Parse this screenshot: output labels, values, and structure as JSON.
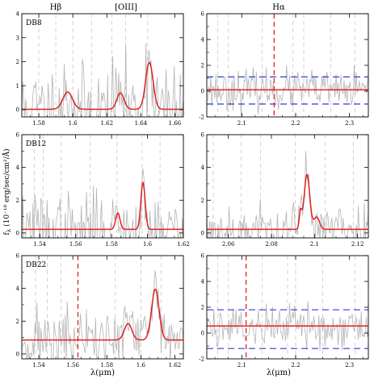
{
  "figure": {
    "header_left_1": "Hβ",
    "header_left_2": "[OIII]",
    "header_right": "Hα",
    "ylabel": "f",
    "ylabel_sub": "λ",
    "ylabel_units": "(10⁻¹⁸ erg/sec/cm²/Å)",
    "xlabel_left": "λ(μm)",
    "xlabel_right": "λ(μm)"
  },
  "colors": {
    "model": "#e02020",
    "spectrum": "#b4b4b4",
    "lines": "#c8c8c8",
    "band": "#2b3bd6",
    "frame": "#000000"
  },
  "chart_data": [
    {
      "type": "line",
      "label": "DB8",
      "panel": "top-left",
      "xlim": [
        1.57,
        1.665
      ],
      "ylim": [
        -0.3,
        4.0
      ],
      "xticks": [
        1.58,
        1.6,
        1.62,
        1.64,
        1.66
      ],
      "xticklabels": [
        "1.58",
        "1.6",
        "1.62",
        "1.64",
        "1.66"
      ],
      "yticks": [
        0,
        1,
        2,
        3,
        4
      ],
      "yticklabels": [
        "0",
        "1",
        "2",
        "3",
        "4"
      ],
      "dashed_lines": [
        1.58,
        1.59,
        1.6,
        1.611,
        1.623,
        1.631,
        1.644
      ],
      "model": {
        "baseline": 0.02,
        "gaussians": [
          {
            "center": 1.597,
            "amp": 0.72,
            "sigma": 0.0028
          },
          {
            "center": 1.628,
            "amp": 0.68,
            "sigma": 0.0021
          },
          {
            "center": 1.645,
            "amp": 1.95,
            "sigma": 0.0022
          }
        ]
      },
      "noise": {
        "sigma": 0.9,
        "seed": 11
      }
    },
    {
      "type": "line",
      "label": "",
      "panel": "top-right",
      "xlim": [
        2.035,
        2.335
      ],
      "ylim": [
        -2.0,
        6.0
      ],
      "xticks": [
        2.1,
        2.2,
        2.3
      ],
      "xticklabels": [
        "2.1",
        "2.2",
        "2.3"
      ],
      "yticks": [
        -2,
        0,
        2,
        4,
        6
      ],
      "yticklabels": [
        "-2",
        "0",
        "2",
        "4",
        "6"
      ],
      "minor_yticks": [
        -1,
        1,
        3,
        5
      ],
      "dashed_lines": [
        2.055,
        2.075,
        2.138,
        2.195,
        2.215,
        2.265,
        2.31
      ],
      "marker_line": 2.16,
      "band": [
        1.1,
        -1.0
      ],
      "model": {
        "baseline": 0.1,
        "gaussians": []
      },
      "noise": {
        "sigma": 0.75,
        "seed": 23
      }
    },
    {
      "type": "line",
      "label": "DB12",
      "panel": "middle-left",
      "xlim": [
        1.53,
        1.62
      ],
      "ylim": [
        -0.3,
        6.0
      ],
      "xticks": [
        1.54,
        1.56,
        1.58,
        1.6,
        1.62
      ],
      "xticklabels": [
        "1.54",
        "1.56",
        "1.58",
        "1.6",
        "1.62"
      ],
      "yticks": [
        0,
        2,
        4,
        6
      ],
      "yticklabels": [
        "0",
        "2",
        "4",
        "6"
      ],
      "minor_yticks": [
        1,
        3,
        5
      ],
      "dashed_lines": [
        1.537,
        1.542,
        1.552,
        1.568,
        1.583,
        1.597,
        1.607
      ],
      "model": {
        "baseline": 0.22,
        "gaussians": [
          {
            "center": 1.5835,
            "amp": 1.0,
            "sigma": 0.0012
          },
          {
            "center": 1.5975,
            "amp": 2.85,
            "sigma": 0.0012
          }
        ]
      },
      "noise": {
        "sigma": 1.1,
        "seed": 37
      }
    },
    {
      "type": "line",
      "label": "",
      "panel": "middle-right",
      "xlim": [
        2.05,
        2.125
      ],
      "ylim": [
        -0.3,
        6.0
      ],
      "xticks": [
        2.06,
        2.08,
        2.1,
        2.12
      ],
      "xticklabels": [
        "2.06",
        "2.08",
        "2.1",
        "2.12"
      ],
      "yticks": [
        0,
        2,
        4,
        6
      ],
      "yticklabels": [
        "0",
        "2",
        "4",
        "6"
      ],
      "minor_yticks": [
        1,
        3,
        5
      ],
      "dashed_lines": [
        2.053,
        2.066,
        2.075,
        2.091,
        2.105,
        2.118
      ],
      "model": {
        "baseline": 0.22,
        "gaussians": [
          {
            "center": 2.0935,
            "amp": 1.0,
            "sigma": 0.0006
          },
          {
            "center": 2.0965,
            "amp": 3.35,
            "sigma": 0.0013
          },
          {
            "center": 2.101,
            "amp": 0.75,
            "sigma": 0.0013
          }
        ]
      },
      "noise": {
        "sigma": 0.85,
        "seed": 53
      }
    },
    {
      "type": "line",
      "label": "DB22",
      "panel": "bottom-left",
      "xlim": [
        1.53,
        1.625
      ],
      "ylim": [
        -0.3,
        6.0
      ],
      "xticks": [
        1.54,
        1.56,
        1.58,
        1.6,
        1.62
      ],
      "xticklabels": [
        "1.54",
        "1.56",
        "1.58",
        "1.6",
        "1.62"
      ],
      "yticks": [
        0,
        2,
        4,
        6
      ],
      "yticklabels": [
        "0",
        "2",
        "4",
        "6"
      ],
      "minor_yticks": [
        1,
        3,
        5
      ],
      "dashed_lines": [
        1.538,
        1.545,
        1.553,
        1.585,
        1.6,
        1.612
      ],
      "marker_line": 1.563,
      "model": {
        "baseline": 0.85,
        "gaussians": [
          {
            "center": 1.5925,
            "amp": 1.0,
            "sigma": 0.0022
          },
          {
            "center": 1.6085,
            "amp": 3.1,
            "sigma": 0.0022
          }
        ]
      },
      "noise": {
        "sigma": 1.0,
        "seed": 71
      }
    },
    {
      "type": "line",
      "label": "",
      "panel": "bottom-right",
      "xlim": [
        2.035,
        2.335
      ],
      "ylim": [
        -2.0,
        6.0
      ],
      "xticks": [
        2.1,
        2.2,
        2.3
      ],
      "xticklabels": [
        "2.1",
        "2.2",
        "2.3"
      ],
      "yticks": [
        -2,
        0,
        2,
        4,
        6
      ],
      "yticklabels": [
        "-2",
        "0",
        "2",
        "4",
        "6"
      ],
      "minor_yticks": [
        -1,
        1,
        3,
        5
      ],
      "dashed_lines": [
        2.055,
        2.075,
        2.138,
        2.185,
        2.2,
        2.25,
        2.31
      ],
      "marker_line": 2.108,
      "band": [
        1.8,
        -1.2
      ],
      "model": {
        "baseline": 0.55,
        "gaussians": []
      },
      "noise": {
        "sigma": 0.9,
        "seed": 89
      }
    }
  ]
}
